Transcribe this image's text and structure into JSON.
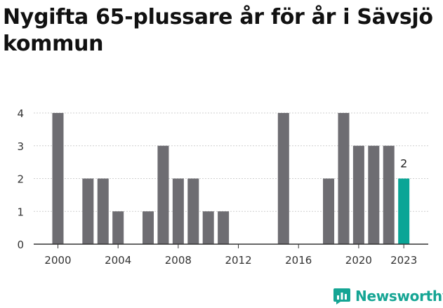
{
  "title": "Nygifta 65-plussare år för år i Sävsjö kommun",
  "brand": {
    "name": "Newsworthy",
    "color": "#15a594",
    "icon": "newsworthy-logo-icon"
  },
  "chart_data": {
    "type": "bar",
    "title": "Nygifta 65-plussare år för år i Sävsjö kommun",
    "xlabel": "",
    "ylabel": "",
    "ylim": [
      0,
      4
    ],
    "yticks": [
      0,
      1,
      2,
      3,
      4
    ],
    "categories": [
      2000,
      2001,
      2002,
      2003,
      2004,
      2005,
      2006,
      2007,
      2008,
      2009,
      2010,
      2011,
      2012,
      2013,
      2014,
      2015,
      2016,
      2017,
      2018,
      2019,
      2020,
      2021,
      2022,
      2023
    ],
    "values": [
      4,
      0,
      2,
      2,
      1,
      0,
      1,
      3,
      2,
      2,
      1,
      1,
      0,
      0,
      0,
      4,
      0,
      0,
      2,
      4,
      3,
      3,
      3,
      2
    ],
    "xtick_labels": [
      "2000",
      "2004",
      "2008",
      "2012",
      "2016",
      "2020",
      "2023"
    ],
    "highlight": {
      "category": 2023,
      "label": "2"
    },
    "colors": {
      "bar": "#6e6d72",
      "highlight": "#0aa596",
      "grid": "#cfcfcf",
      "axis": "#333333"
    },
    "grid": true
  }
}
